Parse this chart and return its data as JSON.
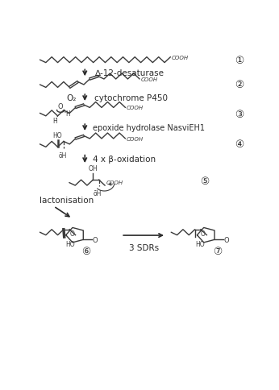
{
  "background": "#ffffff",
  "text_color": "#2a2a2a",
  "arrow_color": "#2a2a2a",
  "labels": {
    "step1": "∆-12-desaturase",
    "step2_left": "O₂",
    "step2_right": "cytochrome P450",
    "step3": "epoxide hydrolase NasviEH1",
    "step4": "4 x β-oxidation",
    "step5": "lactonisation",
    "step6": "3 SDRs"
  },
  "molecule_color": "#3a3a3a",
  "line_width": 1.0
}
